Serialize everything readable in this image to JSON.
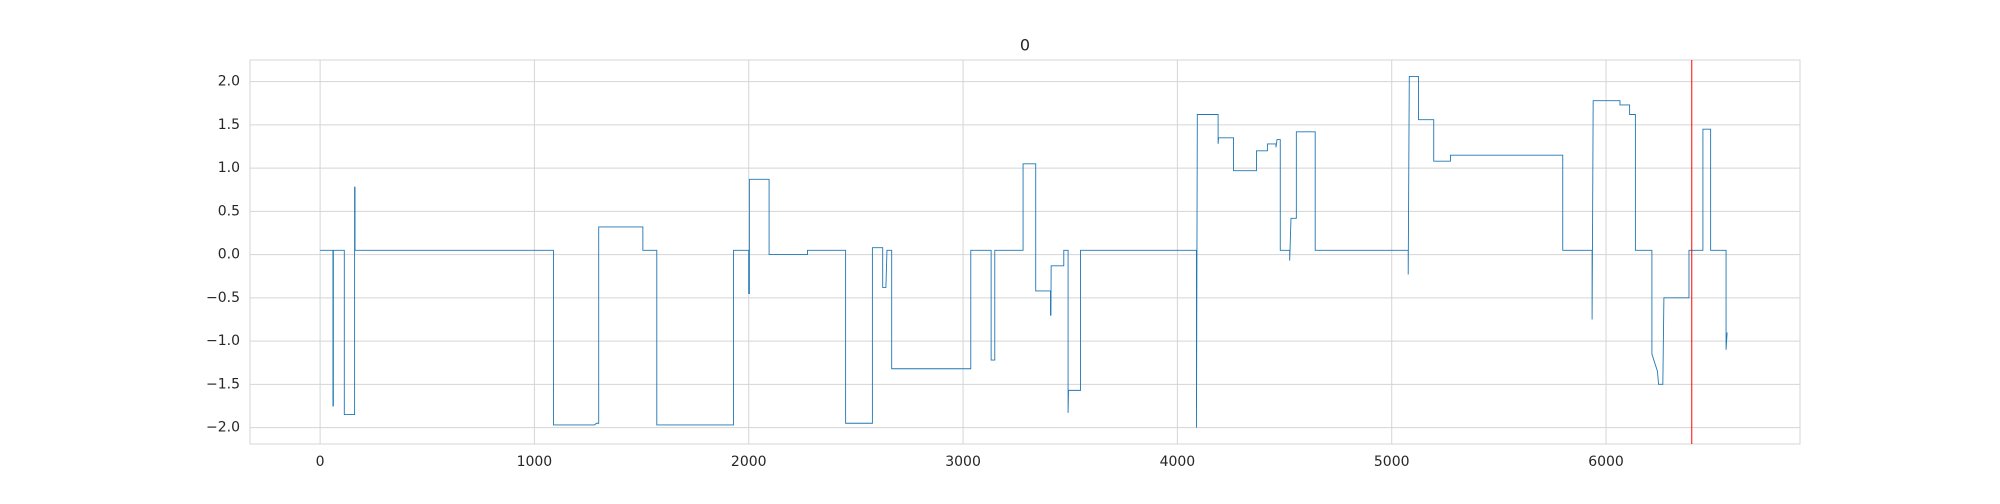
{
  "chart_data": {
    "type": "line",
    "title": "0",
    "series": [
      {
        "color": "#1f77b4",
        "x": [
          0,
          60,
          60,
          62,
          62,
          113,
          113,
          161,
          161,
          163,
          163,
          1089,
          1089,
          1280,
          1290,
          1300,
          1300,
          1506,
          1506,
          1571,
          1571,
          1929,
          1929,
          2000,
          2000,
          2003,
          2003,
          2095,
          2095,
          2274,
          2274,
          2452,
          2452,
          2577,
          2577,
          2625,
          2625,
          2640,
          2645,
          2667,
          2667,
          3036,
          3036,
          3131,
          3131,
          3148,
          3148,
          3280,
          3280,
          3339,
          3339,
          3408,
          3408,
          3410,
          3411,
          3470,
          3470,
          3490,
          3490,
          3492,
          3548,
          3548,
          4089,
          4089,
          4093,
          4190,
          4190,
          4192,
          4262,
          4262,
          4369,
          4369,
          4420,
          4420,
          4460,
          4460,
          4465,
          4480,
          4480,
          4524,
          4524,
          4530,
          4555,
          4555,
          4643,
          4643,
          5077,
          5077,
          5082,
          5125,
          5125,
          5196,
          5196,
          5274,
          5274,
          5798,
          5798,
          5935,
          5935,
          5940,
          6065,
          6065,
          6110,
          6110,
          6137,
          6137,
          6214,
          6214,
          6240,
          6245,
          6265,
          6270,
          6387,
          6387,
          6452,
          6452,
          6488,
          6488,
          6560,
          6560,
          6565
        ],
        "values": [
          0.05,
          0.05,
          -1.75,
          -1.75,
          0.05,
          0.05,
          -1.85,
          -1.85,
          0.78,
          0.78,
          0.05,
          0.05,
          -1.97,
          -1.97,
          -1.95,
          -1.95,
          0.32,
          0.32,
          0.05,
          0.05,
          -1.97,
          -1.97,
          0.05,
          0.05,
          -0.45,
          -0.45,
          0.87,
          0.87,
          0.0,
          0.0,
          0.05,
          0.05,
          -1.95,
          -1.95,
          0.08,
          0.08,
          -0.38,
          -0.38,
          0.05,
          0.05,
          -1.32,
          -1.32,
          0.05,
          0.05,
          -1.22,
          -1.22,
          0.05,
          0.05,
          1.05,
          1.05,
          -0.42,
          -0.42,
          -0.7,
          -0.7,
          -0.13,
          -0.13,
          0.05,
          0.05,
          -1.83,
          -1.57,
          -1.57,
          0.05,
          0.05,
          -2.0,
          1.62,
          1.62,
          1.28,
          1.35,
          1.35,
          0.97,
          0.97,
          1.2,
          1.2,
          1.28,
          1.28,
          1.24,
          1.33,
          1.33,
          0.05,
          0.05,
          -0.07,
          0.42,
          0.42,
          1.42,
          1.42,
          0.05,
          0.05,
          -0.23,
          2.06,
          2.06,
          1.56,
          1.56,
          1.08,
          1.08,
          1.15,
          1.15,
          0.05,
          0.05,
          -0.75,
          1.78,
          1.78,
          1.73,
          1.73,
          1.62,
          1.62,
          0.05,
          0.05,
          -1.15,
          -1.35,
          -1.5,
          -1.5,
          -0.5,
          -0.5,
          0.05,
          0.05,
          1.45,
          1.45,
          0.05,
          0.05,
          -1.1,
          -0.9
        ]
      }
    ],
    "vline": {
      "value": 6400,
      "color": "#ff0000"
    },
    "xlim": [
      -327,
      6905
    ],
    "ylim": [
      -2.19,
      2.25
    ],
    "xticks": [
      0,
      1000,
      2000,
      3000,
      4000,
      5000,
      6000
    ],
    "yticks": [
      {
        "value": -2.0,
        "label": "−2.0"
      },
      {
        "value": -1.5,
        "label": "−1.5"
      },
      {
        "value": -1.0,
        "label": "−1.0"
      },
      {
        "value": -0.5,
        "label": "−0.5"
      },
      {
        "value": 0.0,
        "label": "0.0"
      },
      0.5,
      {
        "value": 1.0,
        "label": "1.0"
      },
      1.5,
      {
        "value": 2.0,
        "label": "2.0"
      }
    ],
    "grid": true
  }
}
